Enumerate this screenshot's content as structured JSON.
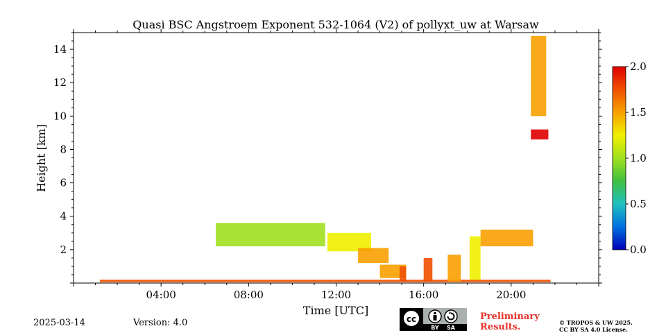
{
  "chart_data": {
    "type": "heatmap",
    "title": "Quasi BSC Angstroem Exponent 532-1064 (V2) of pollyxt_uw at Warsaw",
    "xlabel": "Time [UTC]",
    "ylabel": "Height [km]",
    "xlim_hours": [
      0,
      24
    ],
    "ylim_km": [
      0,
      15
    ],
    "x_ticks": [
      {
        "hour": 4,
        "label": "04:00"
      },
      {
        "hour": 8,
        "label": "08:00"
      },
      {
        "hour": 12,
        "label": "12:00"
      },
      {
        "hour": 16,
        "label": "16:00"
      },
      {
        "hour": 20,
        "label": "20:00"
      }
    ],
    "y_ticks": [
      {
        "value": 2,
        "label": "2"
      },
      {
        "value": 4,
        "label": "4"
      },
      {
        "value": 6,
        "label": "6"
      },
      {
        "value": 8,
        "label": "8"
      },
      {
        "value": 10,
        "label": "10"
      },
      {
        "value": 12,
        "label": "12"
      },
      {
        "value": 14,
        "label": "14"
      }
    ],
    "colorbar": {
      "range": [
        0,
        2
      ],
      "ticks": [
        {
          "value": 0,
          "label": "0.0"
        },
        {
          "value": 0.5,
          "label": "0.5"
        },
        {
          "value": 1,
          "label": "1.0"
        },
        {
          "value": 1.5,
          "label": "1.5"
        },
        {
          "value": 2,
          "label": "2.0"
        }
      ],
      "colormap": [
        "#0000b8",
        "#0070e0",
        "#20c0c0",
        "#40c040",
        "#a0e020",
        "#f0f000",
        "#f8a000",
        "#f05000",
        "#e00000"
      ]
    },
    "regions": [
      {
        "name": "surface layer",
        "t0": 1.2,
        "t1": 21.8,
        "h0": 0.05,
        "h1": 0.2,
        "value": 1.85
      },
      {
        "name": "aerosol layer midday",
        "t0": 11.6,
        "t1": 13.6,
        "h0": 1.9,
        "h1": 3.0,
        "value": 1.35
      },
      {
        "name": "descending layer",
        "t0": 13.0,
        "t1": 14.4,
        "h0": 1.2,
        "h1": 2.1,
        "value": 1.5
      },
      {
        "name": "low layer afternoon",
        "t0": 14.0,
        "t1": 15.2,
        "h0": 0.3,
        "h1": 1.1,
        "value": 1.6
      },
      {
        "name": "column 15-16",
        "t0": 14.9,
        "t1": 15.2,
        "h0": 0.1,
        "h1": 1.0,
        "value": 1.7
      },
      {
        "name": "column 16",
        "t0": 16.0,
        "t1": 16.4,
        "h0": 0.1,
        "h1": 1.5,
        "value": 1.7
      },
      {
        "name": "column 17",
        "t0": 17.1,
        "t1": 17.7,
        "h0": 0.1,
        "h1": 1.7,
        "value": 1.55
      },
      {
        "name": "column 18",
        "t0": 18.1,
        "t1": 18.6,
        "h0": 0.2,
        "h1": 2.8,
        "value": 1.2
      },
      {
        "name": "evening layer",
        "t0": 18.6,
        "t1": 21.0,
        "h0": 2.2,
        "h1": 3.2,
        "value": 1.6
      },
      {
        "name": "cirrus 8-9 km",
        "t0": 20.9,
        "t1": 21.7,
        "h0": 8.6,
        "h1": 9.2,
        "value": 1.9
      },
      {
        "name": "cirrus 12-15 km",
        "t0": 20.9,
        "t1": 21.6,
        "h0": 10.0,
        "h1": 14.8,
        "value": 1.6
      },
      {
        "name": "morning layer",
        "t0": 6.5,
        "t1": 11.5,
        "h0": 2.2,
        "h1": 3.6,
        "value": 1.1
      }
    ]
  },
  "footer": {
    "date": "2025-03-14",
    "version": "Version: 4.0",
    "license_badge_text": [
      "BY",
      "SA"
    ],
    "preliminary": [
      "Preliminary",
      "Results."
    ],
    "copyright": [
      "© TROPOS & UW 2025.",
      "CC BY SA 4.0 License."
    ]
  }
}
